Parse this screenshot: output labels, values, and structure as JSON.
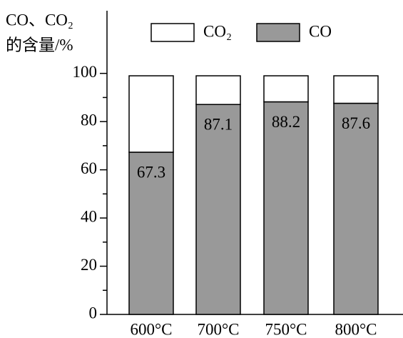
{
  "chart_data": {
    "type": "stacked_bar",
    "y_label_lines": [
      "CO、CO₂",
      "的含量/%"
    ],
    "categories": [
      "600°C",
      "700°C",
      "750°C",
      "800°C"
    ],
    "series": [
      {
        "name": "CO",
        "color": "#999999",
        "values": [
          67.3,
          87.1,
          88.2,
          87.6
        ]
      },
      {
        "name": "CO₂",
        "color": "#ffffff",
        "values": [
          31.7,
          11.9,
          10.8,
          11.4
        ]
      }
    ],
    "ylim": [
      0,
      126
    ],
    "yticks": [
      0,
      20,
      40,
      60,
      80,
      100
    ],
    "minor_yticks": [
      10,
      30,
      50,
      70,
      90
    ],
    "legend_order": [
      1,
      0
    ],
    "legend": "top",
    "data_labels_series": 0
  }
}
